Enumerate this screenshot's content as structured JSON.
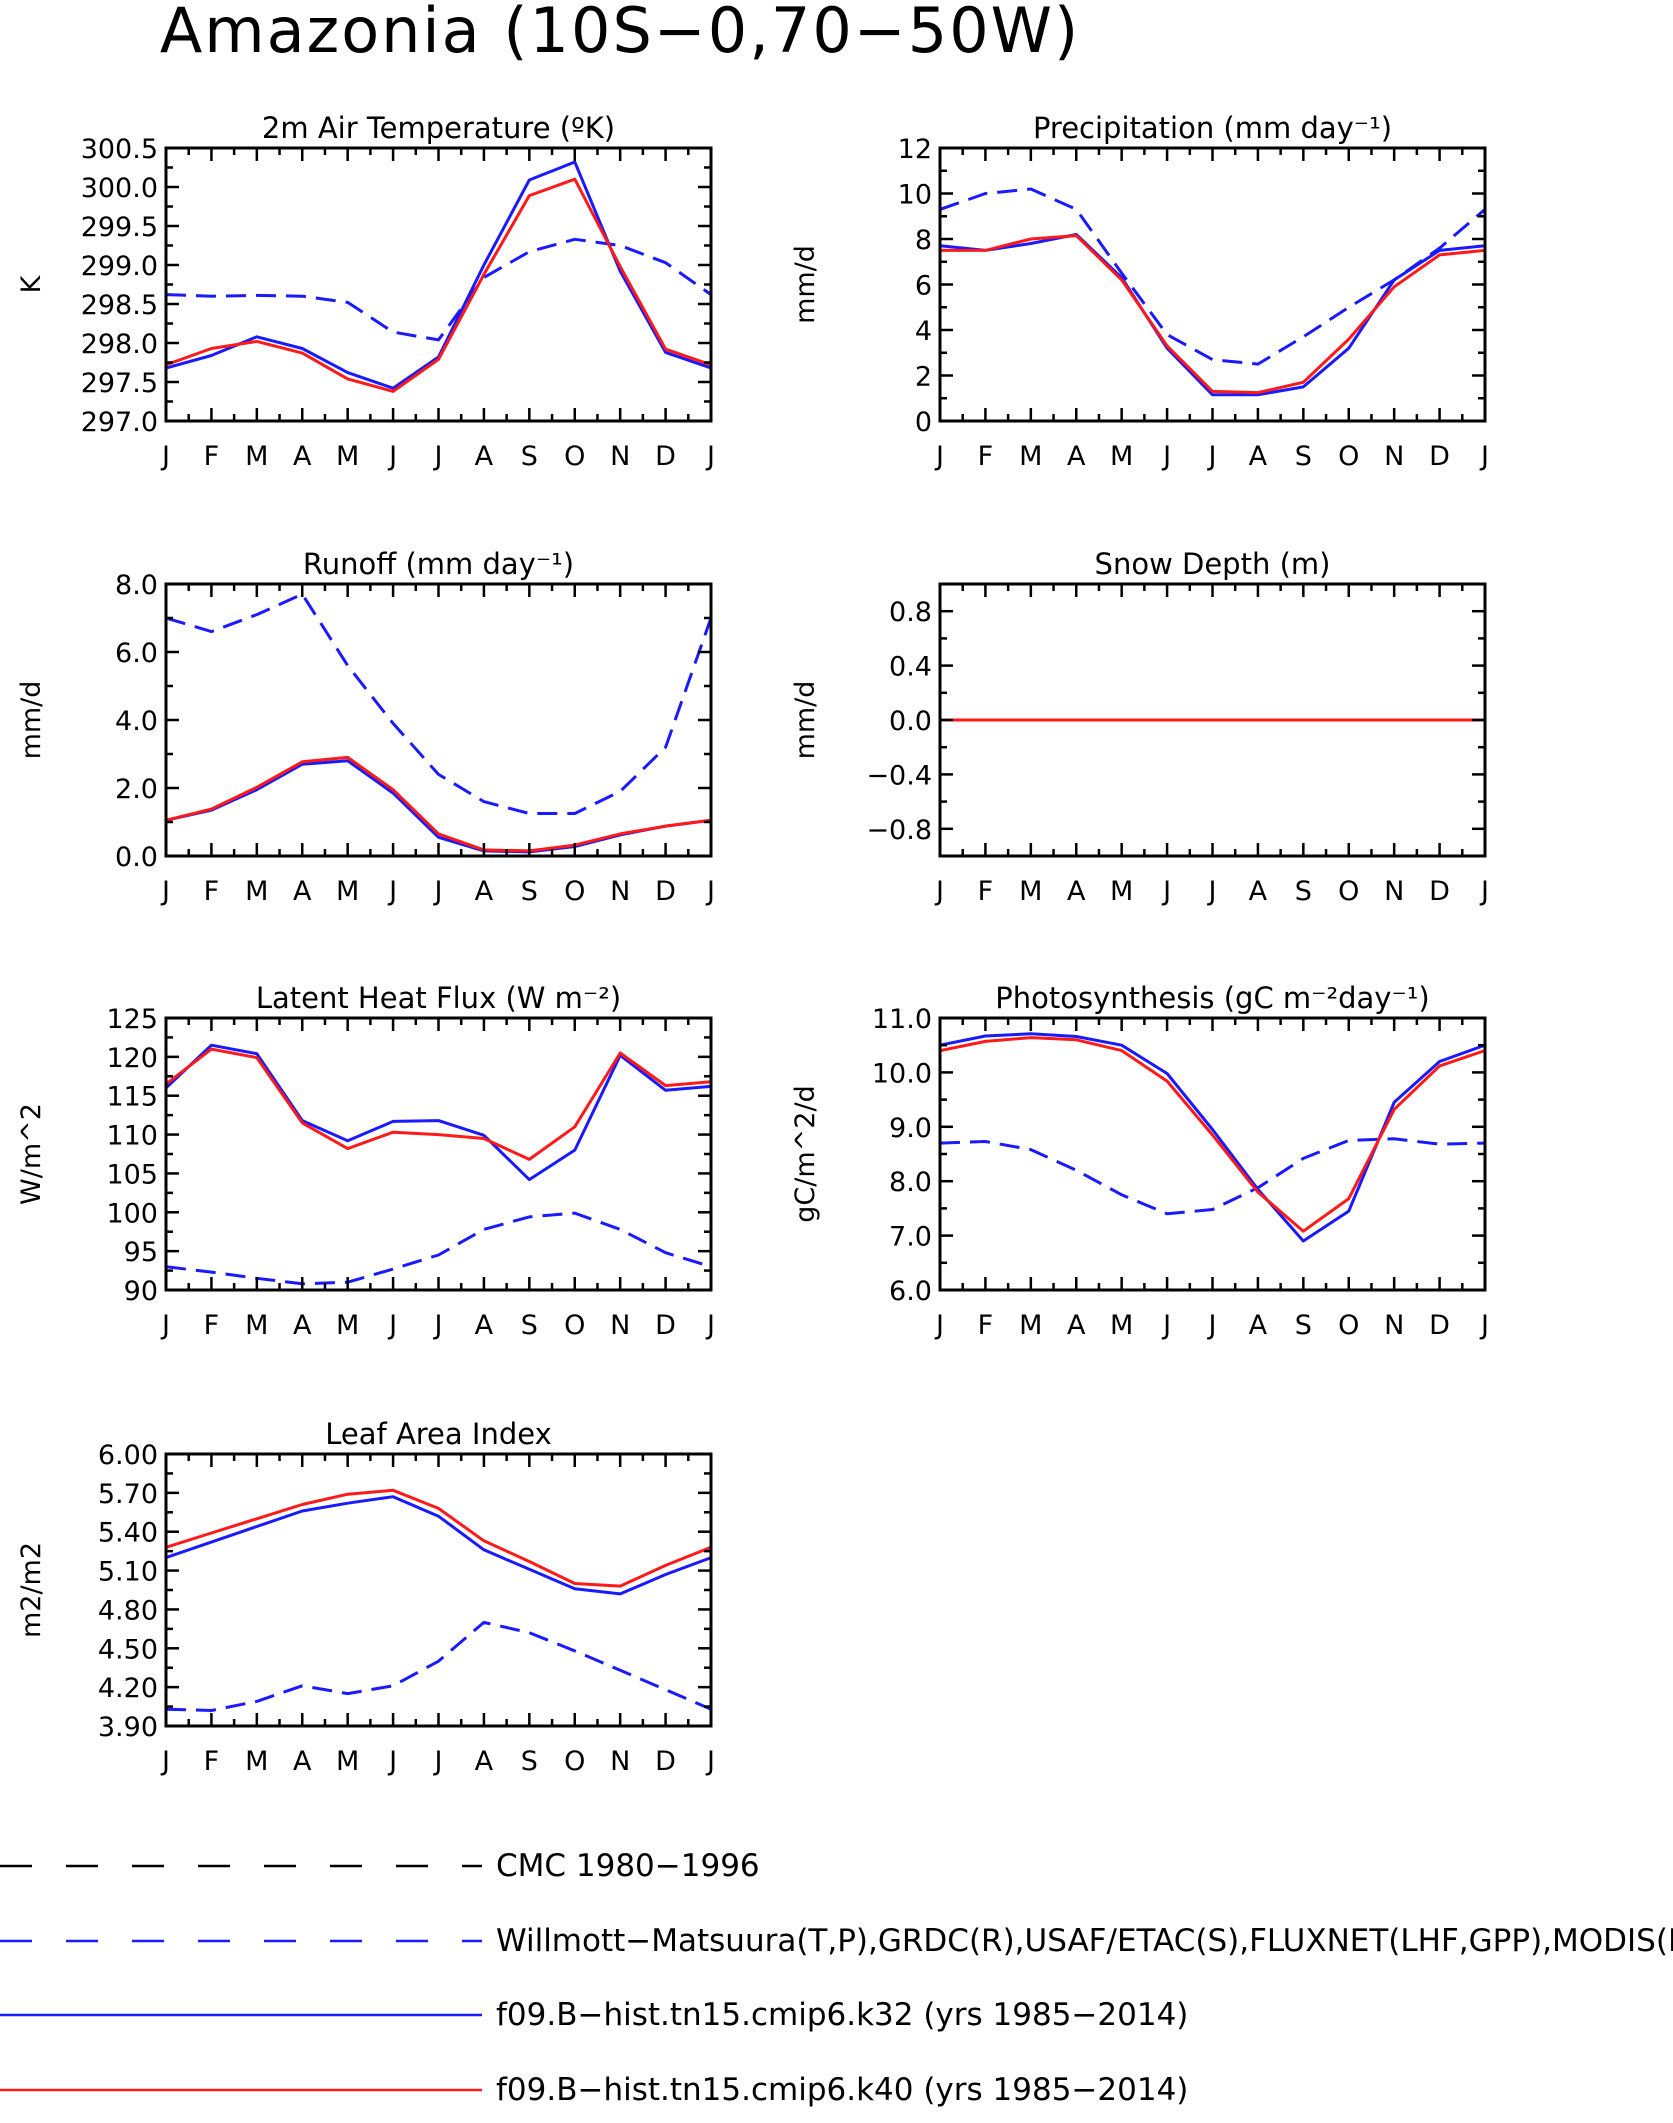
{
  "title": "Amazonia (10S−0,70−50W)",
  "colors": {
    "obs": "#1a1aff",
    "k32": "#1a1aff",
    "k40": "#ff1a1a",
    "cmc": "#000000"
  },
  "legend": [
    {
      "label": "CMC 1980−1996",
      "color": "#000000",
      "dash": true
    },
    {
      "label": "Willmott−Matsuura(T,P),GRDC(R),USAF/ETAC(S),FLUXNET(LHF,GPP),MODIS(L",
      "color": "#1a1aff",
      "dash": true
    },
    {
      "label": "f09.B−hist.tn15.cmip6.k32 (yrs 1985−2014)",
      "color": "#1a1aff",
      "dash": false
    },
    {
      "label": "f09.B−hist.tn15.cmip6.k40 (yrs 1985−2014)",
      "color": "#ff1a1a",
      "dash": false
    }
  ],
  "chart_data": [
    {
      "type": "line",
      "title": "2m Air Temperature (ºK)",
      "ylabel": "K",
      "categories": [
        "J",
        "F",
        "M",
        "A",
        "M",
        "J",
        "J",
        "A",
        "S",
        "O",
        "N",
        "D",
        "J"
      ],
      "ylim": [
        297.0,
        300.5
      ],
      "yticks": [
        "297.0",
        "297.5",
        "298.0",
        "298.5",
        "299.0",
        "299.5",
        "300.0",
        "300.5"
      ],
      "series": [
        {
          "name": "obs",
          "style": "dash",
          "values": [
            298.62,
            298.6,
            298.61,
            298.6,
            298.52,
            298.14,
            298.04,
            298.84,
            299.17,
            299.33,
            299.25,
            299.03,
            298.62
          ]
        },
        {
          "name": "k32",
          "style": "solid",
          "values": [
            297.68,
            297.84,
            298.08,
            297.93,
            297.62,
            297.42,
            297.82,
            299.0,
            300.09,
            300.32,
            298.92,
            297.88,
            297.68
          ]
        },
        {
          "name": "k40",
          "style": "solid",
          "values": [
            297.72,
            297.93,
            298.02,
            297.87,
            297.54,
            297.38,
            297.79,
            298.88,
            299.89,
            300.1,
            298.98,
            297.92,
            297.72
          ]
        }
      ]
    },
    {
      "type": "line",
      "title": "Precipitation (mm day⁻¹)",
      "ylabel": "mm/d",
      "categories": [
        "J",
        "F",
        "M",
        "A",
        "M",
        "J",
        "J",
        "A",
        "S",
        "O",
        "N",
        "D",
        "J"
      ],
      "ylim": [
        0,
        12
      ],
      "yticks": [
        "0",
        "2",
        "4",
        "6",
        "8",
        "10",
        "12"
      ],
      "series": [
        {
          "name": "obs",
          "style": "dash",
          "values": [
            9.3,
            10.0,
            10.2,
            9.3,
            6.5,
            3.8,
            2.7,
            2.5,
            3.7,
            5.0,
            6.2,
            7.6,
            9.3
          ]
        },
        {
          "name": "k32",
          "style": "solid",
          "values": [
            7.7,
            7.5,
            7.8,
            8.2,
            6.3,
            3.2,
            1.15,
            1.15,
            1.5,
            3.2,
            6.2,
            7.5,
            7.7
          ]
        },
        {
          "name": "k40",
          "style": "solid",
          "values": [
            7.5,
            7.5,
            8.0,
            8.15,
            6.2,
            3.3,
            1.3,
            1.25,
            1.7,
            3.6,
            5.9,
            7.3,
            7.5
          ]
        }
      ]
    },
    {
      "type": "line",
      "title": "Runoff (mm day⁻¹)",
      "ylabel": "mm/d",
      "categories": [
        "J",
        "F",
        "M",
        "A",
        "M",
        "J",
        "J",
        "A",
        "S",
        "O",
        "N",
        "D",
        "J"
      ],
      "ylim": [
        0,
        8
      ],
      "yticks": [
        "0.0",
        "2.0",
        "4.0",
        "6.0",
        "8.0"
      ],
      "series": [
        {
          "name": "obs",
          "style": "dash",
          "values": [
            7.0,
            6.6,
            7.1,
            7.7,
            5.6,
            3.9,
            2.4,
            1.6,
            1.25,
            1.25,
            1.9,
            3.2,
            7.0
          ]
        },
        {
          "name": "k32",
          "style": "solid",
          "values": [
            1.05,
            1.35,
            1.95,
            2.7,
            2.8,
            1.85,
            0.55,
            0.15,
            0.12,
            0.28,
            0.62,
            0.88,
            1.05
          ]
        },
        {
          "name": "k40",
          "style": "solid",
          "values": [
            1.05,
            1.38,
            2.02,
            2.77,
            2.9,
            1.95,
            0.65,
            0.18,
            0.15,
            0.32,
            0.65,
            0.88,
            1.05
          ]
        }
      ]
    },
    {
      "type": "line",
      "title": "Snow Depth (m)",
      "ylabel": "mm/d",
      "categories": [
        "J",
        "F",
        "M",
        "A",
        "M",
        "J",
        "J",
        "A",
        "S",
        "O",
        "N",
        "D",
        "J"
      ],
      "ylim": [
        -1,
        1
      ],
      "yticks": [
        "−0.8",
        "−0.4",
        "0.0",
        "0.4",
        "0.8"
      ],
      "series": [
        {
          "name": "obs",
          "style": "dash",
          "values": [
            0,
            0,
            0,
            0,
            0,
            0,
            0,
            0,
            0,
            0,
            0,
            0,
            0
          ]
        },
        {
          "name": "k32",
          "style": "solid",
          "values": [
            0,
            0,
            0,
            0,
            0,
            0,
            0,
            0,
            0,
            0,
            0,
            0,
            0
          ]
        },
        {
          "name": "k40",
          "style": "solid",
          "values": [
            0,
            0,
            0,
            0,
            0,
            0,
            0,
            0,
            0,
            0,
            0,
            0,
            0
          ]
        }
      ]
    },
    {
      "type": "line",
      "title": "Latent Heat Flux (W m⁻²)",
      "ylabel": "W/m^2",
      "categories": [
        "J",
        "F",
        "M",
        "A",
        "M",
        "J",
        "J",
        "A",
        "S",
        "O",
        "N",
        "D",
        "J"
      ],
      "ylim": [
        90,
        125
      ],
      "yticks": [
        "90",
        "95",
        "100",
        "105",
        "110",
        "115",
        "120",
        "125"
      ],
      "series": [
        {
          "name": "obs",
          "style": "dash",
          "values": [
            93.0,
            92.3,
            91.5,
            90.8,
            91.0,
            92.7,
            94.5,
            97.8,
            99.4,
            99.9,
            97.8,
            94.8,
            93.0
          ]
        },
        {
          "name": "k32",
          "style": "solid",
          "values": [
            116.0,
            121.5,
            120.4,
            111.8,
            109.2,
            111.7,
            111.8,
            109.9,
            104.2,
            108.0,
            120.2,
            115.7,
            116.2
          ]
        },
        {
          "name": "k40",
          "style": "solid",
          "values": [
            116.5,
            121.0,
            119.9,
            111.5,
            108.2,
            110.3,
            110.0,
            109.5,
            106.8,
            111.0,
            120.5,
            116.3,
            116.8
          ]
        }
      ]
    },
    {
      "type": "line",
      "title": "Photosynthesis (gC m⁻²day⁻¹)",
      "ylabel": "gC/m^2/d",
      "categories": [
        "J",
        "F",
        "M",
        "A",
        "M",
        "J",
        "J",
        "A",
        "S",
        "O",
        "N",
        "D",
        "J"
      ],
      "ylim": [
        6.0,
        11.0
      ],
      "yticks": [
        "6.0",
        "7.0",
        "8.0",
        "9.0",
        "10.0",
        "11.0"
      ],
      "series": [
        {
          "name": "obs",
          "style": "dash",
          "values": [
            8.7,
            8.73,
            8.58,
            8.2,
            7.75,
            7.4,
            7.48,
            7.88,
            8.42,
            8.75,
            8.78,
            8.68,
            8.7
          ]
        },
        {
          "name": "k32",
          "style": "solid",
          "values": [
            10.5,
            10.67,
            10.71,
            10.66,
            10.5,
            9.98,
            8.95,
            7.85,
            6.9,
            7.45,
            9.45,
            10.2,
            10.5
          ]
        },
        {
          "name": "k40",
          "style": "solid",
          "values": [
            10.4,
            10.57,
            10.64,
            10.6,
            10.4,
            9.84,
            8.85,
            7.8,
            7.08,
            7.68,
            9.32,
            10.12,
            10.4
          ]
        }
      ]
    },
    {
      "type": "line",
      "title": "Leaf Area Index",
      "ylabel": "m2/m2",
      "categories": [
        "J",
        "F",
        "M",
        "A",
        "M",
        "J",
        "J",
        "A",
        "S",
        "O",
        "N",
        "D",
        "J"
      ],
      "ylim": [
        3.9,
        6.0
      ],
      "yticks": [
        "3.90",
        "4.20",
        "4.50",
        "4.80",
        "5.10",
        "5.40",
        "5.70",
        "6.00"
      ],
      "series": [
        {
          "name": "obs",
          "style": "dash",
          "values": [
            4.03,
            4.02,
            4.09,
            4.21,
            4.15,
            4.21,
            4.4,
            4.7,
            4.62,
            4.48,
            4.33,
            4.18,
            4.03
          ]
        },
        {
          "name": "k32",
          "style": "solid",
          "values": [
            5.2,
            5.32,
            5.44,
            5.56,
            5.62,
            5.67,
            5.52,
            5.26,
            5.11,
            4.96,
            4.92,
            5.07,
            5.2
          ]
        },
        {
          "name": "k40",
          "style": "solid",
          "values": [
            5.28,
            5.39,
            5.5,
            5.61,
            5.69,
            5.72,
            5.58,
            5.33,
            5.17,
            5.0,
            4.98,
            5.14,
            5.28
          ]
        }
      ]
    }
  ]
}
